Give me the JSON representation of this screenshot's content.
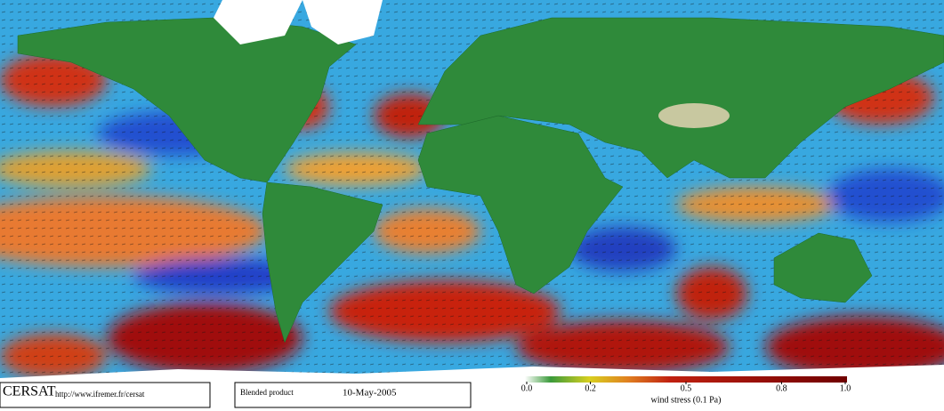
{
  "branding": {
    "logo": "CERSAT",
    "url": "http://www.ifremer.fr/cersat"
  },
  "product": {
    "name": "Blended product",
    "date": "10-May-2005"
  },
  "colorbar": {
    "label": "wind stress (0.1 Pa)",
    "range": [
      0,
      1
    ],
    "ticks": [
      {
        "value": 0,
        "label": "0.0"
      },
      0.2,
      0.5,
      0.8,
      {
        "value": 1,
        "label": "1.0"
      }
    ]
  }
}
